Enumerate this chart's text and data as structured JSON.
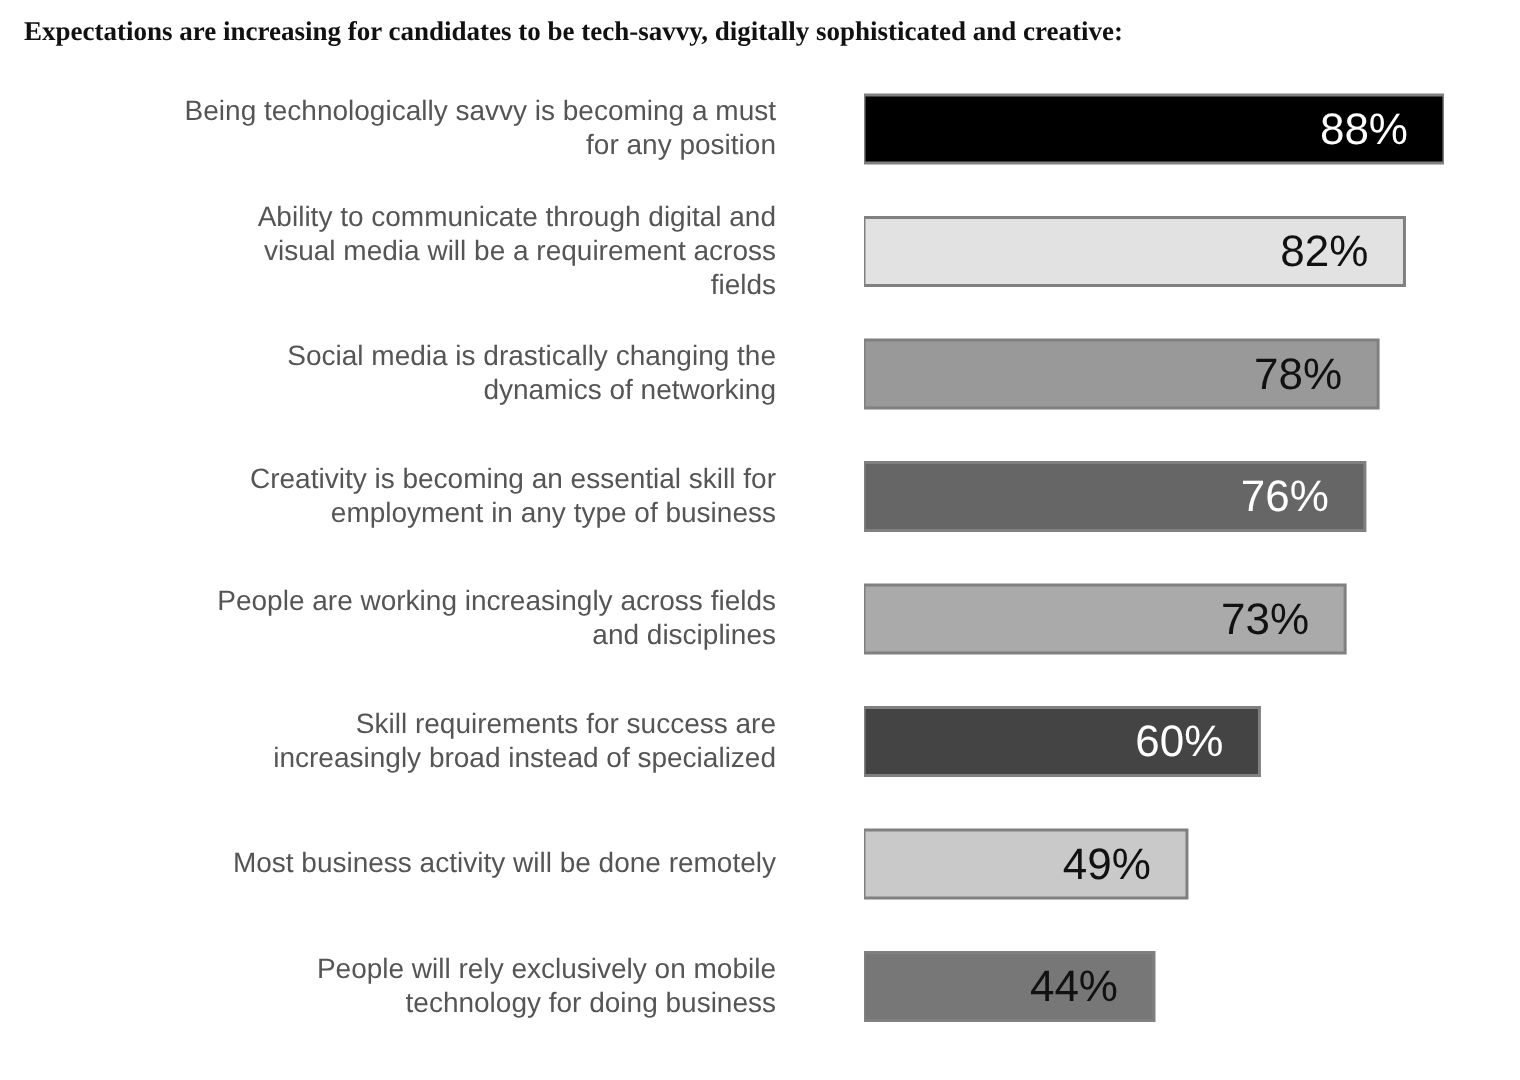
{
  "chart_data": {
    "type": "bar",
    "orientation": "horizontal",
    "title": "Expectations are increasing for candidates to be tech-savvy, digitally sophisticated and creative:",
    "categories": [
      "Being technologically savvy is becoming a must for any position",
      "Ability to communicate through digital and visual media will be a requirement across fields",
      "Social media is drastically changing the dynamics of networking",
      "Creativity is becoming an essential skill for employment in any type of business",
      "People are working increasingly across fields and disciplines",
      "Skill requirements for success are increasingly broad instead of specialized",
      "Most business activity will be done remotely",
      "People will rely exclusively on mobile technology for doing business"
    ],
    "values": [
      88,
      82,
      78,
      76,
      73,
      60,
      49,
      44
    ],
    "value_labels": [
      "88%",
      "82%",
      "78%",
      "76%",
      "73%",
      "60%",
      "49%",
      "44%"
    ],
    "colors": [
      "#000000",
      "#e2e2e2",
      "#999999",
      "#666666",
      "#aaaaaa",
      "#444444",
      "#c9c9c9",
      "#777777"
    ],
    "grid": false,
    "legend": false,
    "tick_labels": "y"
  }
}
